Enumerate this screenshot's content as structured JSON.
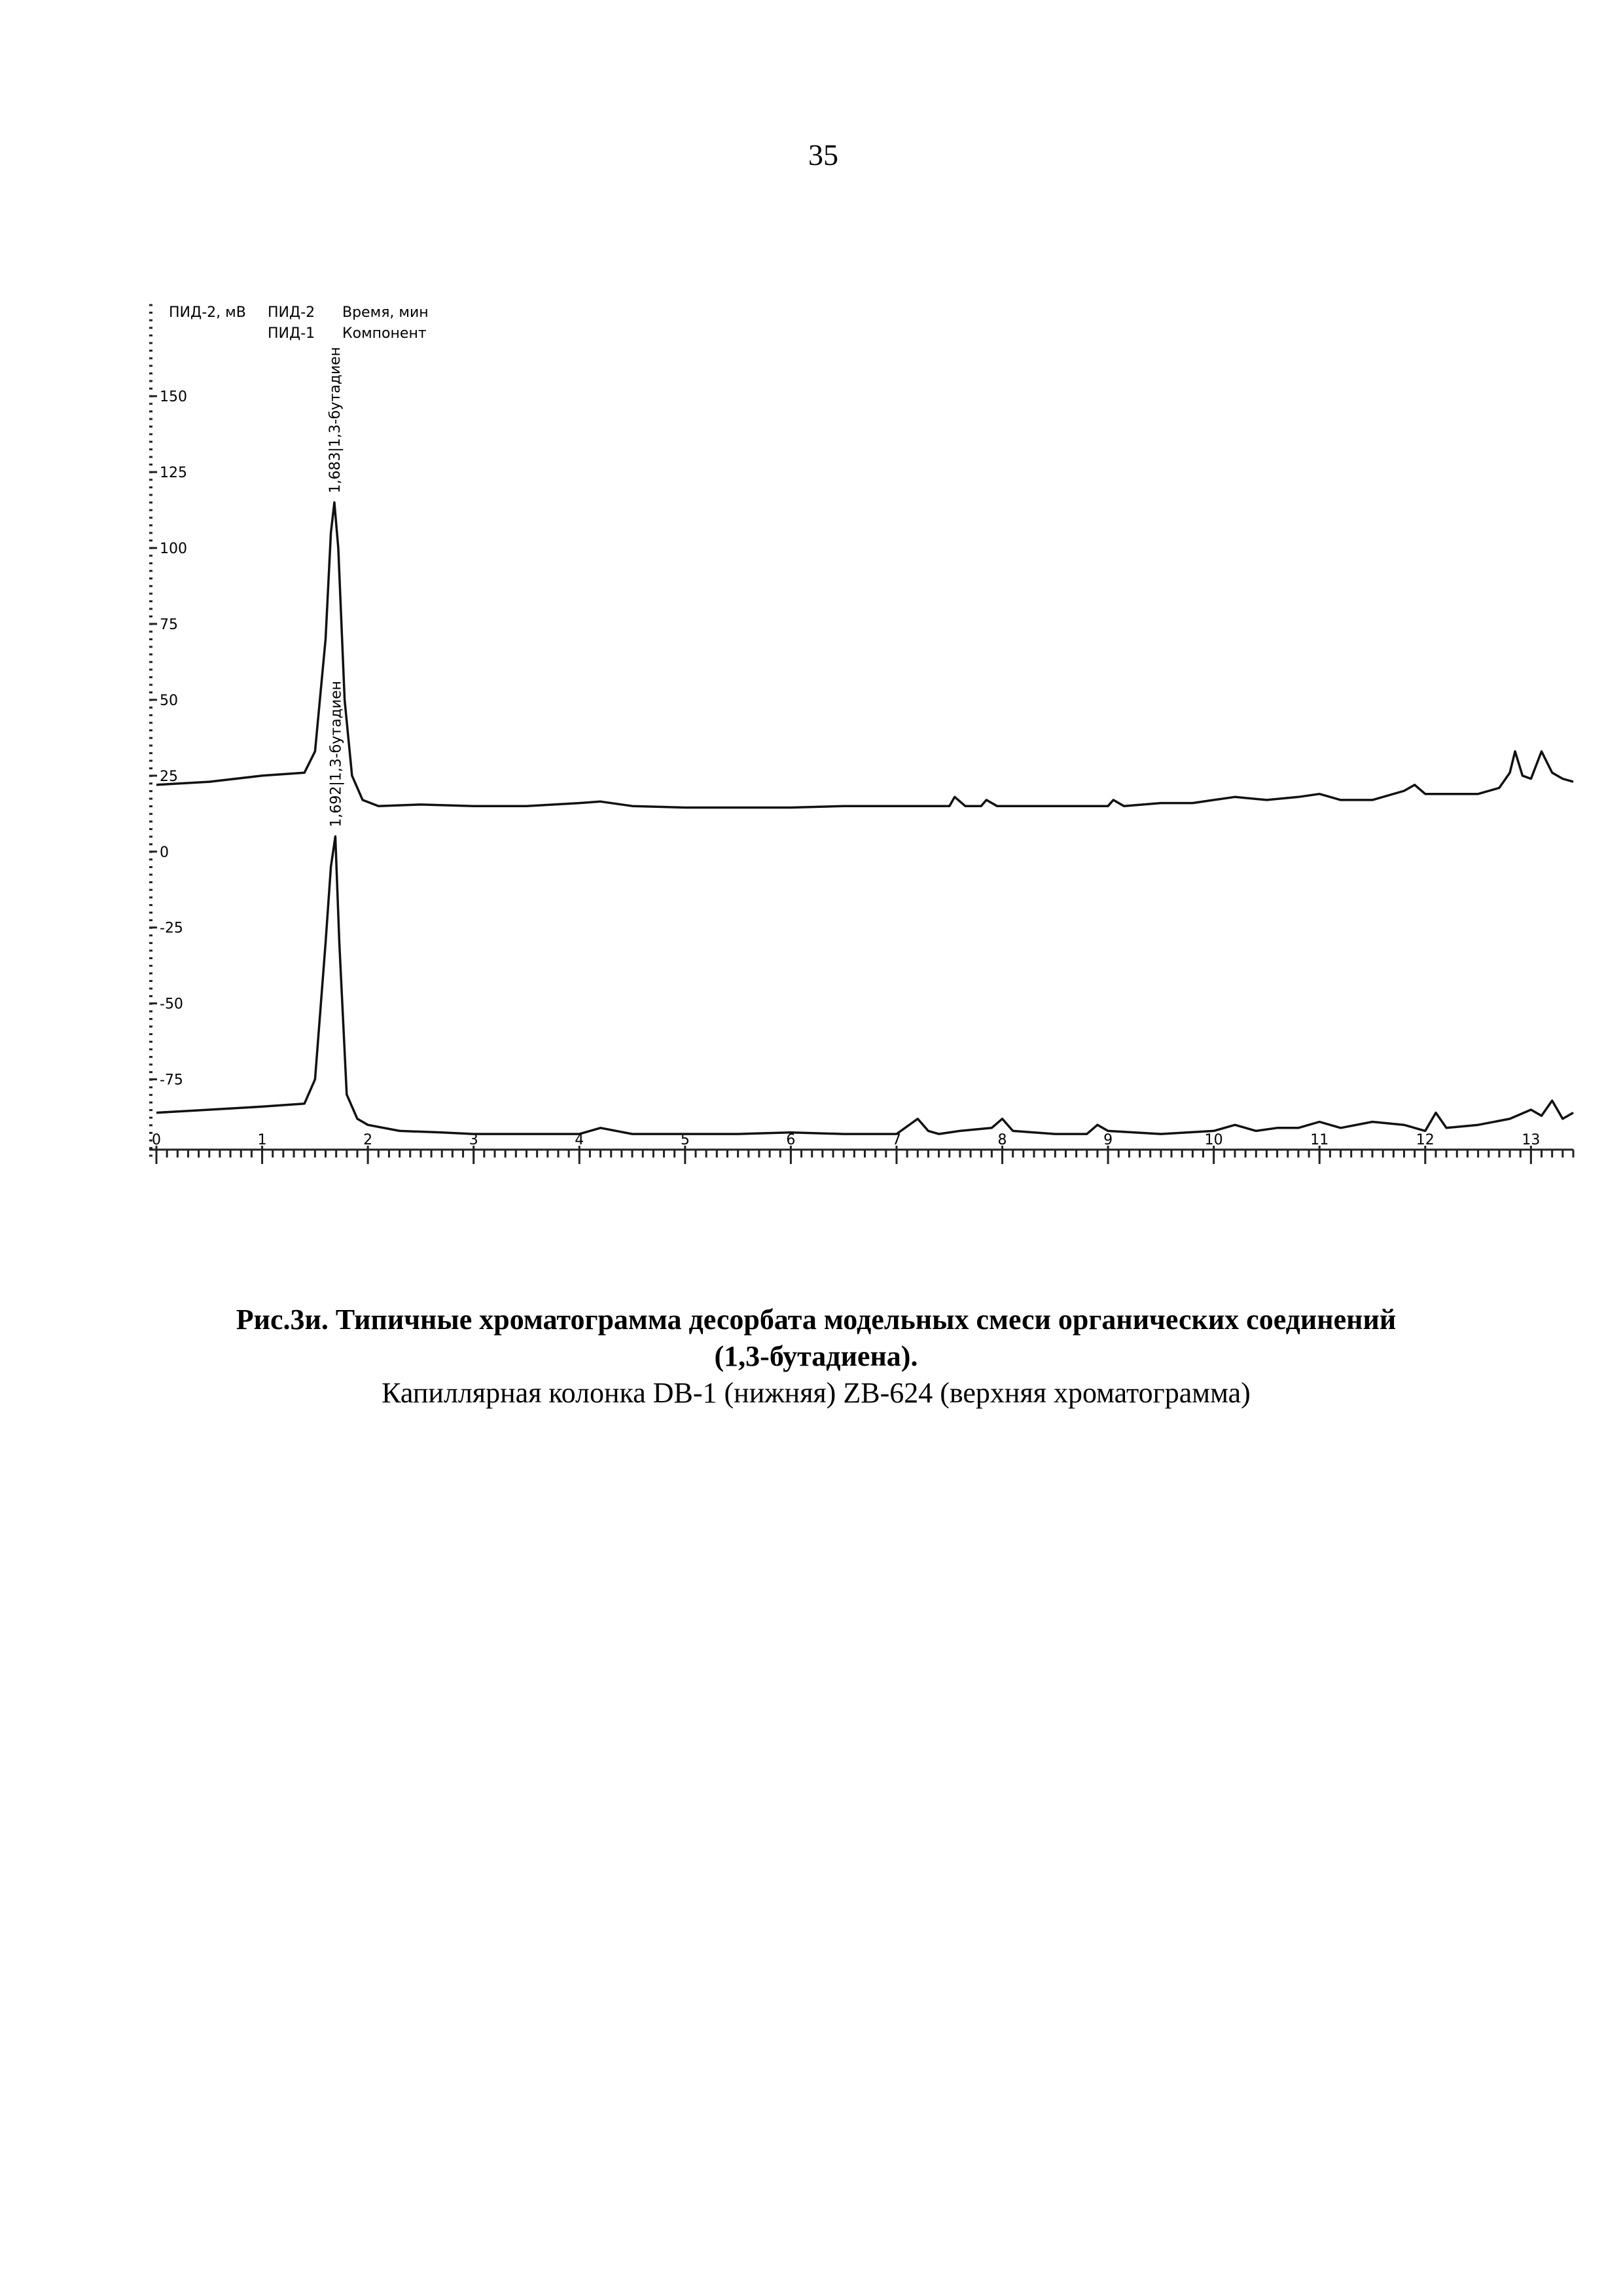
{
  "page_number": "35",
  "chart_data": {
    "type": "line",
    "y_label": "ПИД-2, мВ",
    "x_header": "Время, мин",
    "component_header": "Компонент",
    "xlim": [
      0,
      13.4
    ],
    "ylim": [
      -96,
      180
    ],
    "xticks": [
      0,
      1,
      2,
      3,
      4,
      5,
      6,
      7,
      8,
      9,
      10,
      11,
      12,
      13
    ],
    "yticks": [
      150,
      125,
      100,
      75,
      50,
      25,
      0,
      -25,
      -50,
      -75
    ],
    "series": [
      {
        "name": "ПИД-2",
        "color": "#111111",
        "peak": {
          "value": 1.683,
          "label": "1,683|1,3-бутадиен"
        },
        "x": [
          0,
          0.5,
          1.0,
          1.4,
          1.5,
          1.6,
          1.65,
          1.683,
          1.72,
          1.78,
          1.85,
          1.95,
          2.1,
          2.5,
          3,
          3.5,
          4,
          4.2,
          4.5,
          5,
          5.5,
          6,
          6.5,
          7,
          7.5,
          7.55,
          7.65,
          7.8,
          7.85,
          7.95,
          8.1,
          8.5,
          9,
          9.05,
          9.15,
          9.5,
          9.8,
          10,
          10.2,
          10.5,
          10.8,
          11,
          11.2,
          11.5,
          11.8,
          11.9,
          12.0,
          12.2,
          12.5,
          12.7,
          12.8,
          12.85,
          12.92,
          13.0,
          13.1,
          13.2,
          13.3,
          13.4
        ],
        "values": [
          22,
          23,
          25,
          26,
          33,
          70,
          105,
          115,
          100,
          50,
          25,
          17,
          15,
          15.5,
          15,
          15,
          16,
          16.5,
          15,
          14.5,
          14.5,
          14.5,
          15,
          15,
          15,
          18,
          15,
          15,
          17,
          15,
          15,
          15,
          15,
          17,
          15,
          16,
          16,
          17,
          18,
          17,
          18,
          19,
          17,
          17,
          20,
          22,
          19,
          19,
          19,
          21,
          26,
          33,
          25,
          24,
          33,
          26,
          24,
          23
        ]
      },
      {
        "name": "ПИД-1",
        "color": "#111111",
        "peak": {
          "value": 1.692,
          "label": "1,692|1,3-бутадиен"
        },
        "x": [
          0,
          0.5,
          1.0,
          1.4,
          1.5,
          1.6,
          1.65,
          1.692,
          1.73,
          1.8,
          1.9,
          2.0,
          2.3,
          2.7,
          3,
          3.5,
          4,
          4.2,
          4.5,
          5,
          5.5,
          6,
          6.5,
          7,
          7.2,
          7.3,
          7.4,
          7.6,
          7.9,
          8.0,
          8.1,
          8.5,
          8.8,
          8.9,
          9.0,
          9.5,
          10,
          10.2,
          10.4,
          10.6,
          10.8,
          11,
          11.2,
          11.5,
          11.8,
          12,
          12.1,
          12.2,
          12.5,
          12.8,
          13,
          13.1,
          13.2,
          13.3,
          13.4
        ],
        "values": [
          -86,
          -85,
          -84,
          -83,
          -75,
          -30,
          -5,
          5,
          -30,
          -80,
          -88,
          -90,
          -92,
          -92.5,
          -93,
          -93,
          -93,
          -91,
          -93,
          -93,
          -93,
          -92.5,
          -93,
          -93,
          -88,
          -92,
          -93,
          -92,
          -91,
          -88,
          -92,
          -93,
          -93,
          -90,
          -92,
          -93,
          -92,
          -90,
          -92,
          -91,
          -91,
          -89,
          -91,
          -89,
          -90,
          -92,
          -86,
          -91,
          -90,
          -88,
          -85,
          -87,
          -82,
          -88,
          -86
        ]
      }
    ]
  },
  "caption": {
    "bold_lines": [
      "Рис.3и. Типичные хроматограмма десорбата модельных смеси органических соединений",
      "(1,3-бутадиена)."
    ],
    "normal_line": "Капиллярная колонка DB-1 (нижняя) ZB-624 (верхняя хроматограмма)"
  }
}
